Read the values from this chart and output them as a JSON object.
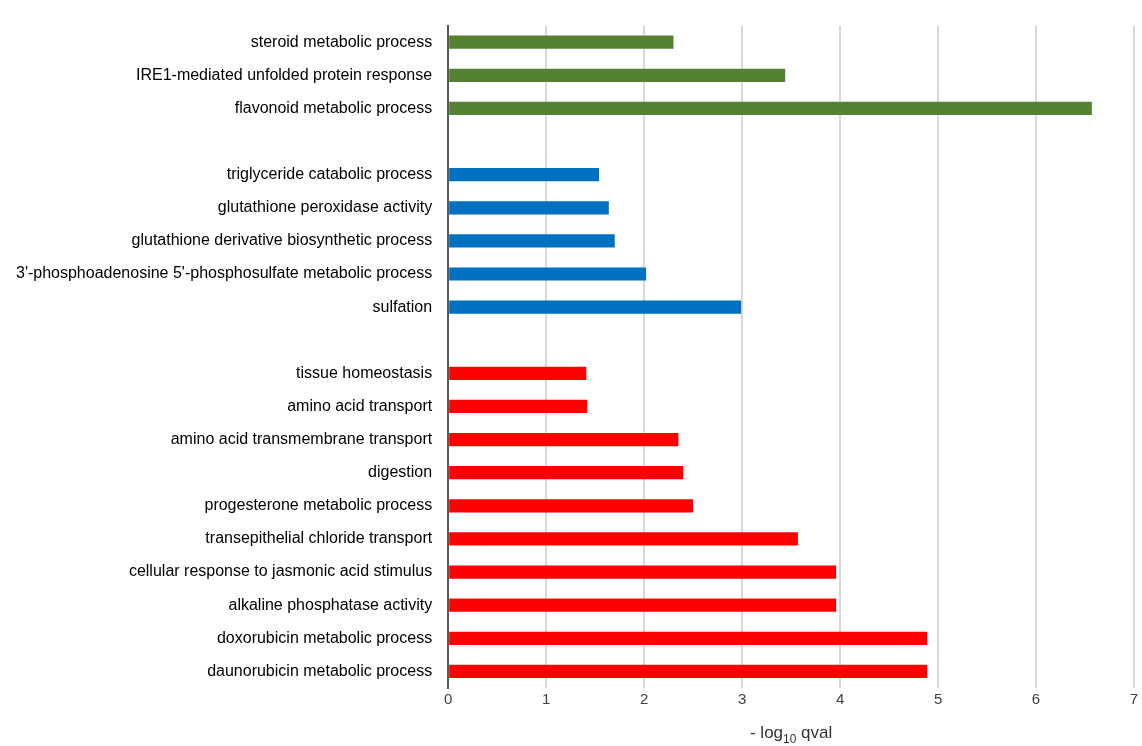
{
  "chart_data": {
    "type": "bar",
    "orientation": "horizontal",
    "xlabel": "- log$_{10}$ qval",
    "categories": [
      "steroid metabolic process",
      "IRE1-mediated unfolded protein response",
      "flavonoid metabolic process",
      null,
      "triglyceride catabolic process",
      "glutathione peroxidase activity",
      "glutathione derivative biosynthetic process",
      "3'-phosphoadenosine 5'-phosphosulfate metabolic process",
      "sulfation",
      null,
      "tissue homeostasis",
      "amino acid transport",
      "amino acid transmembrane transport",
      "digestion",
      "progesterone metabolic process",
      "transepithelial chloride transport",
      "cellular response to jasmonic acid stimulus",
      "alkaline phosphatase activity",
      "doxorubicin metabolic process",
      "daunorubicin metabolic process"
    ],
    "values": [
      2.3,
      3.44,
      6.57,
      null,
      1.54,
      1.64,
      1.7,
      2.02,
      2.99,
      null,
      1.41,
      1.42,
      2.35,
      2.4,
      2.5,
      3.57,
      3.96,
      3.96,
      4.89,
      4.89
    ],
    "colors": [
      "#548235",
      "#548235",
      "#548235",
      null,
      "#0070c0",
      "#0070c0",
      "#0070c0",
      "#0070c0",
      "#0070c0",
      null,
      "#ff0000",
      "#ff0000",
      "#ff0000",
      "#ff0000",
      "#ff0000",
      "#ff0000",
      "#ff0000",
      "#ff0000",
      "#ff0000",
      "#ff0000"
    ],
    "xlim": [
      0,
      7
    ],
    "xticks": [
      0,
      1,
      2,
      3,
      4,
      5,
      6,
      7
    ],
    "grid": "x"
  }
}
